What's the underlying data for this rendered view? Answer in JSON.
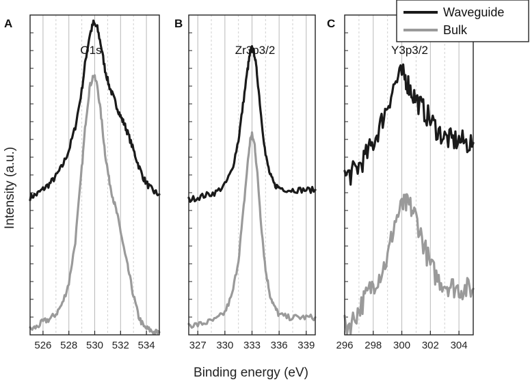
{
  "chart_data": {
    "type": "line",
    "ylabel": "Intensity (a.u.)",
    "xlabel": "Binding energy (eV)",
    "legend": {
      "position": "top-right",
      "entries": [
        {
          "name": "Waveguide",
          "color": "#1a1a1a"
        },
        {
          "name": "Bulk",
          "color": "#9a9a9a"
        }
      ]
    },
    "colors": {
      "waveguide": "#1a1a1a",
      "bulk": "#9a9a9a",
      "major_grid": "#b8b8b8",
      "minor_grid": "#cfcfcf"
    },
    "panels": [
      {
        "letter": "A",
        "title": "O1s",
        "xlim": [
          525,
          535
        ],
        "ylim": [
          0,
          1.23
        ],
        "tick_values": [
          526,
          528,
          530,
          532,
          534
        ],
        "tick_labels": [
          "526",
          "528",
          "530",
          "532",
          "534"
        ],
        "series": [
          {
            "name": "Waveguide",
            "x": [
              525.0,
              525.5,
              526.0,
              526.5,
              527.0,
              527.5,
              528.0,
              528.5,
              529.0,
              529.3,
              529.6,
              529.9,
              530.2,
              530.5,
              530.8,
              531.1,
              531.4,
              531.7,
              532.0,
              532.3,
              532.6,
              533.0,
              533.4,
              533.8,
              534.2,
              534.6,
              535.0
            ],
            "y": [
              0.53,
              0.54,
              0.56,
              0.58,
              0.61,
              0.65,
              0.71,
              0.8,
              0.94,
              1.06,
              1.15,
              1.2,
              1.18,
              1.11,
              1.02,
              0.96,
              0.92,
              0.88,
              0.84,
              0.81,
              0.77,
              0.71,
              0.65,
              0.6,
              0.57,
              0.55,
              0.54
            ]
          },
          {
            "name": "Bulk",
            "x": [
              525.0,
              525.5,
              526.0,
              526.5,
              527.0,
              527.5,
              528.0,
              528.5,
              529.0,
              529.3,
              529.6,
              529.9,
              530.2,
              530.5,
              530.8,
              531.1,
              531.4,
              531.7,
              532.0,
              532.3,
              532.6,
              533.0,
              533.4,
              533.8,
              534.2,
              534.6,
              535.0
            ],
            "y": [
              0.02,
              0.03,
              0.05,
              0.06,
              0.08,
              0.12,
              0.2,
              0.36,
              0.64,
              0.82,
              0.95,
              1.0,
              0.96,
              0.84,
              0.7,
              0.6,
              0.53,
              0.47,
              0.4,
              0.32,
              0.25,
              0.15,
              0.07,
              0.03,
              0.02,
              0.01,
              0.01
            ]
          }
        ]
      },
      {
        "letter": "B",
        "title": "Zr3p3/2",
        "xlim": [
          326,
          340
        ],
        "ylim": [
          0,
          1.28
        ],
        "tick_values": [
          327,
          330,
          333,
          336,
          339
        ],
        "tick_labels": [
          "327",
          "330",
          "333",
          "336",
          "339"
        ],
        "series": [
          {
            "name": "Waveguide",
            "x": [
              326.0,
              327.0,
              328.0,
              329.0,
              330.0,
              330.8,
              331.5,
              332.0,
              332.5,
              332.8,
              333.0,
              333.3,
              333.6,
              334.0,
              334.5,
              335.0,
              335.5,
              336.0,
              337.0,
              338.0,
              339.0,
              340.0
            ],
            "y": [
              0.54,
              0.55,
              0.56,
              0.57,
              0.6,
              0.66,
              0.78,
              0.92,
              1.06,
              1.13,
              1.15,
              1.12,
              1.03,
              0.88,
              0.72,
              0.64,
              0.6,
              0.59,
              0.58,
              0.58,
              0.58,
              0.58
            ]
          },
          {
            "name": "Bulk",
            "x": [
              326.0,
              327.0,
              328.0,
              329.0,
              330.0,
              330.8,
              331.5,
              332.0,
              332.5,
              332.8,
              333.0,
              333.3,
              333.6,
              334.0,
              334.5,
              335.0,
              335.5,
              336.0,
              337.0,
              338.0,
              339.0,
              340.0
            ],
            "y": [
              0.04,
              0.04,
              0.05,
              0.06,
              0.09,
              0.16,
              0.3,
              0.48,
              0.68,
              0.78,
              0.8,
              0.76,
              0.64,
              0.45,
              0.26,
              0.16,
              0.11,
              0.08,
              0.07,
              0.07,
              0.07,
              0.07
            ]
          }
        ]
      },
      {
        "letter": "C",
        "title": "Y3p3/2",
        "xlim": [
          296,
          305
        ],
        "ylim": [
          0,
          1.25
        ],
        "tick_values": [
          296,
          298,
          300,
          302,
          304
        ],
        "tick_labels": [
          "296",
          "298",
          "300",
          "302",
          "304"
        ],
        "series": [
          {
            "name": "Waveguide",
            "x": [
              296.0,
              296.5,
              297.0,
              297.5,
              298.0,
              298.5,
              299.0,
              299.5,
              300.0,
              300.3,
              300.6,
              301.0,
              301.5,
              302.0,
              302.5,
              303.0,
              303.5,
              304.0,
              304.5,
              305.0
            ],
            "y": [
              0.62,
              0.63,
              0.66,
              0.7,
              0.75,
              0.82,
              0.9,
              0.98,
              1.02,
              1.0,
              0.96,
              0.92,
              0.88,
              0.84,
              0.8,
              0.77,
              0.76,
              0.76,
              0.75,
              0.75
            ]
          },
          {
            "name": "Bulk",
            "x": [
              296.0,
              296.5,
              297.0,
              297.5,
              298.0,
              298.5,
              299.0,
              299.5,
              300.0,
              300.3,
              300.6,
              301.0,
              301.5,
              302.0,
              302.5,
              303.0,
              303.5,
              304.0,
              304.5,
              305.0
            ],
            "y": [
              0.03,
              0.05,
              0.1,
              0.15,
              0.2,
              0.24,
              0.3,
              0.44,
              0.5,
              0.51,
              0.5,
              0.46,
              0.36,
              0.27,
              0.22,
              0.2,
              0.19,
              0.18,
              0.18,
              0.18
            ]
          }
        ]
      }
    ]
  }
}
